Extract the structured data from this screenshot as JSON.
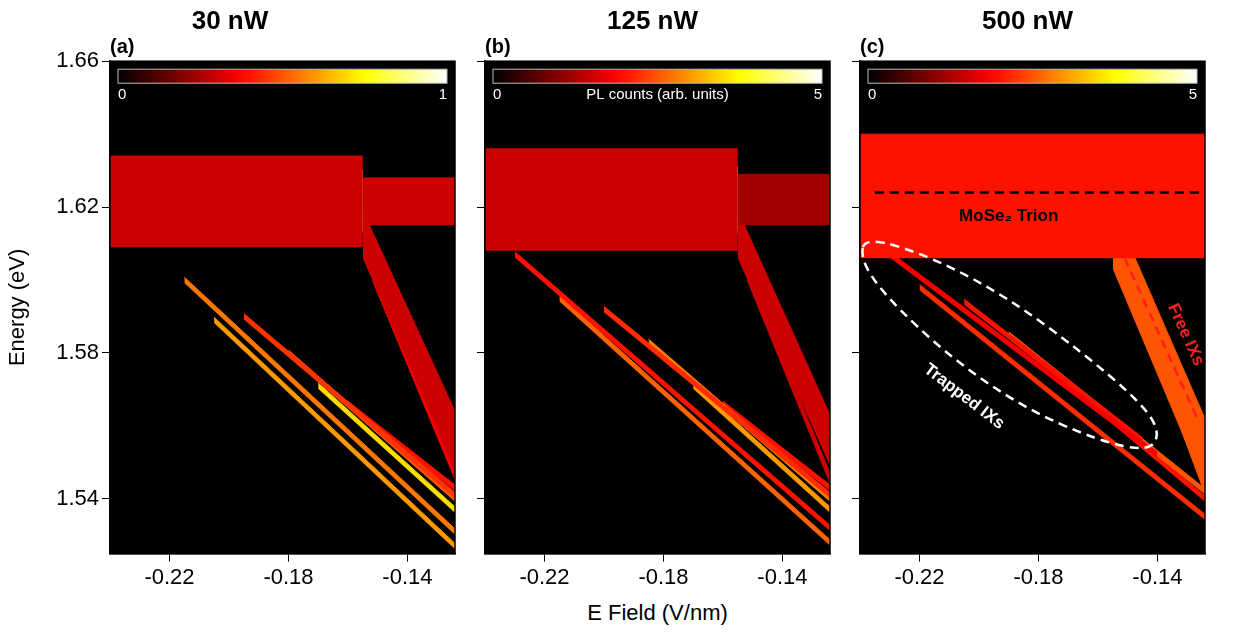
{
  "chart_data": [
    {
      "type": "area",
      "title": "30 nW",
      "panel_label": "(a)",
      "ylabel": "Energy (eV)",
      "xlim": [
        -0.24,
        -0.124
      ],
      "xticks": [
        -0.22,
        -0.18,
        -0.14
      ],
      "ylim": [
        1.525,
        1.66
      ],
      "yticks": [
        1.54,
        1.58,
        1.62,
        1.66
      ],
      "grid": false,
      "colorbar": {
        "range": [
          0,
          1
        ],
        "ticks": [
          0,
          1
        ]
      },
      "series": [
        {
          "x": [
            -0.24,
            -0.155
          ],
          "lower": [
            1.609,
            1.609
          ],
          "upper": [
            1.634,
            1.634
          ],
          "intensity": 0.3
        },
        {
          "x": [
            -0.24,
            -0.155
          ],
          "lower": [
            1.613,
            1.613
          ],
          "upper": [
            1.63,
            1.63
          ],
          "intensity": 0.75
        },
        {
          "x": [
            -0.155,
            -0.124
          ],
          "lower": [
            1.615,
            1.615
          ],
          "upper": [
            1.628,
            1.628
          ],
          "intensity": 0.3
        },
        {
          "x": [
            -0.155,
            -0.124
          ],
          "lower": [
            1.606,
            1.548
          ],
          "upper": [
            1.619,
            1.564
          ],
          "intensity": 0.3
        },
        {
          "x": [
            -0.155,
            -0.124
          ],
          "lower": [
            1.609,
            1.552
          ],
          "upper": [
            1.616,
            1.56
          ],
          "intensity": 1.0
        },
        {
          "x": [
            -0.152,
            -0.124
          ],
          "lower": [
            1.6,
            1.545
          ],
          "upper": [
            1.603,
            1.548
          ],
          "intensity": 0.35
        },
        {
          "x": [
            -0.215,
            -0.124
          ],
          "lower": [
            1.5992,
            1.5302
          ],
          "upper": [
            1.6008,
            1.5318
          ],
          "intensity": 0.55
        },
        {
          "x": [
            -0.205,
            -0.124
          ],
          "lower": [
            1.5882,
            1.5262
          ],
          "upper": [
            1.5898,
            1.5278
          ],
          "intensity": 0.6
        },
        {
          "x": [
            -0.195,
            -0.124
          ],
          "lower": [
            1.5892,
            1.5402
          ],
          "upper": [
            1.5908,
            1.5418
          ],
          "intensity": 0.45
        },
        {
          "x": [
            -0.18,
            -0.124
          ],
          "lower": [
            1.5792,
            1.5392
          ],
          "upper": [
            1.5808,
            1.5408
          ],
          "intensity": 0.5
        },
        {
          "x": [
            -0.17,
            -0.124
          ],
          "lower": [
            1.5702,
            1.5362
          ],
          "upper": [
            1.5718,
            1.5378
          ],
          "intensity": 0.7
        },
        {
          "x": [
            -0.16,
            -0.124
          ],
          "lower": [
            1.5652,
            1.5422
          ],
          "upper": [
            1.5668,
            1.5438
          ],
          "intensity": 0.4
        }
      ]
    },
    {
      "type": "area",
      "title": "125 nW",
      "panel_label": "(b)",
      "xlabel": "E Field (V/nm)",
      "xlim": [
        -0.24,
        -0.124
      ],
      "xticks": [
        -0.22,
        -0.18,
        -0.14
      ],
      "ylim": [
        1.525,
        1.66
      ],
      "yticks": [
        1.54,
        1.58,
        1.62,
        1.66
      ],
      "grid": false,
      "tick_labels": "x",
      "colorbar": {
        "range": [
          0,
          5
        ],
        "ticks": [
          0,
          5
        ],
        "label": "PL counts (arb. units)"
      },
      "series": [
        {
          "x": [
            -0.24,
            -0.155
          ],
          "lower": [
            1.608,
            1.608
          ],
          "upper": [
            1.636,
            1.636
          ],
          "intensity": 1.5
        },
        {
          "x": [
            -0.24,
            -0.155
          ],
          "lower": [
            1.613,
            1.613
          ],
          "upper": [
            1.631,
            1.631
          ],
          "intensity": 4.2
        },
        {
          "x": [
            -0.155,
            -0.124
          ],
          "lower": [
            1.615,
            1.615
          ],
          "upper": [
            1.629,
            1.629
          ],
          "intensity": 1.2
        },
        {
          "x": [
            -0.155,
            -0.124
          ],
          "lower": [
            1.606,
            1.549
          ],
          "upper": [
            1.619,
            1.563
          ],
          "intensity": 1.5
        },
        {
          "x": [
            -0.155,
            -0.124
          ],
          "lower": [
            1.609,
            1.552
          ],
          "upper": [
            1.616,
            1.56
          ],
          "intensity": 4.6
        },
        {
          "x": [
            -0.152,
            -0.124
          ],
          "lower": [
            1.6,
            1.544
          ],
          "upper": [
            1.603,
            1.547
          ],
          "intensity": 1.5
        },
        {
          "x": [
            -0.23,
            -0.124
          ],
          "lower": [
            1.6062,
            1.5312
          ],
          "upper": [
            1.6078,
            1.5328
          ],
          "intensity": 2.0
        },
        {
          "x": [
            -0.215,
            -0.124
          ],
          "lower": [
            1.5942,
            1.5272
          ],
          "upper": [
            1.5958,
            1.5288
          ],
          "intensity": 2.6
        },
        {
          "x": [
            -0.2,
            -0.124
          ],
          "lower": [
            1.5912,
            1.5402
          ],
          "upper": [
            1.5928,
            1.5418
          ],
          "intensity": 2.2
        },
        {
          "x": [
            -0.185,
            -0.124
          ],
          "lower": [
            1.5822,
            1.5392
          ],
          "upper": [
            1.5838,
            1.5408
          ],
          "intensity": 2.8
        },
        {
          "x": [
            -0.17,
            -0.124
          ],
          "lower": [
            1.5702,
            1.5362
          ],
          "upper": [
            1.5718,
            1.5378
          ],
          "intensity": 3.0
        },
        {
          "x": [
            -0.16,
            -0.124
          ],
          "lower": [
            1.5652,
            1.5422
          ],
          "upper": [
            1.5668,
            1.5438
          ],
          "intensity": 2.0
        }
      ]
    },
    {
      "type": "area",
      "title": "500 nW",
      "panel_label": "(c)",
      "xlim": [
        -0.24,
        -0.124
      ],
      "xticks": [
        -0.22,
        -0.18,
        -0.14
      ],
      "ylim": [
        1.525,
        1.66
      ],
      "yticks": [
        1.54,
        1.58,
        1.62,
        1.66
      ],
      "grid": false,
      "tick_labels": "x",
      "colorbar": {
        "range": [
          0,
          5
        ],
        "ticks": [
          0,
          5
        ]
      },
      "series": [
        {
          "x": [
            -0.24,
            -0.124
          ],
          "lower": [
            1.606,
            1.606
          ],
          "upper": [
            1.64,
            1.64
          ],
          "intensity": 2.0
        },
        {
          "x": [
            -0.24,
            -0.155
          ],
          "lower": [
            1.611,
            1.611
          ],
          "upper": [
            1.636,
            1.636
          ],
          "intensity": 5
        },
        {
          "x": [
            -0.155,
            -0.124
          ],
          "lower": [
            1.623,
            1.623
          ],
          "upper": [
            1.637,
            1.637
          ],
          "intensity": 5
        },
        {
          "x": [
            -0.155,
            -0.124
          ],
          "lower": [
            1.603,
            1.543
          ],
          "upper": [
            1.62,
            1.562
          ],
          "intensity": 2.5
        },
        {
          "x": [
            -0.155,
            -0.124
          ],
          "lower": [
            1.608,
            1.549
          ],
          "upper": [
            1.617,
            1.559
          ],
          "intensity": 5
        },
        {
          "x": [
            -0.15,
            -0.124
          ],
          "lower": [
            1.598,
            1.541
          ],
          "upper": [
            1.601,
            1.544
          ],
          "intensity": 2.5
        },
        {
          "x": [
            -0.235,
            -0.14
          ],
          "lower": [
            1.6092,
            1.5512
          ],
          "upper": [
            1.6108,
            1.5528
          ],
          "intensity": 1.8
        },
        {
          "x": [
            -0.22,
            -0.124
          ],
          "lower": [
            1.5972,
            1.5342
          ],
          "upper": [
            1.5988,
            1.5358
          ],
          "intensity": 2.2
        },
        {
          "x": [
            -0.205,
            -0.145
          ],
          "lower": [
            1.5932,
            1.5552
          ],
          "upper": [
            1.5948,
            1.5568
          ],
          "intensity": 2.0
        },
        {
          "x": [
            -0.19,
            -0.124
          ],
          "lower": [
            1.5842,
            1.5412
          ],
          "upper": [
            1.5858,
            1.5428
          ],
          "intensity": 2.5
        },
        {
          "x": [
            -0.175,
            -0.124
          ],
          "lower": [
            1.5742,
            1.5392
          ],
          "upper": [
            1.5758,
            1.5408
          ],
          "intensity": 2.0
        }
      ],
      "dashed_lines": [
        {
          "x": [
            -0.235,
            -0.124
          ],
          "y": [
            1.624,
            1.624
          ],
          "color": "#000000"
        },
        {
          "x": [
            -0.151,
            -0.126
          ],
          "y": [
            1.606,
            1.561
          ],
          "color": "#ff1f1f"
        },
        {
          "x": [
            -0.238,
            -0.215,
            -0.19,
            -0.165,
            -0.145,
            -0.139,
            -0.143,
            -0.16,
            -0.185,
            -0.21,
            -0.232,
            -0.24,
            -0.238
          ],
          "y": [
            1.612,
            1.606,
            1.595,
            1.58,
            1.566,
            1.558,
            1.553,
            1.556,
            1.565,
            1.579,
            1.596,
            1.606,
            1.612
          ],
          "color": "#ffffff"
        }
      ],
      "annotations": [
        {
          "text": "MoSe₂ Trion",
          "x": -0.19,
          "y": 1.6175,
          "color": "#000000"
        },
        {
          "text": "Free IXs",
          "x": -0.1305,
          "y": 1.585,
          "color": "#ff1f1f"
        },
        {
          "text": "Trapped IXs",
          "x": -0.205,
          "y": 1.568,
          "color": "#ffffff"
        }
      ]
    }
  ]
}
